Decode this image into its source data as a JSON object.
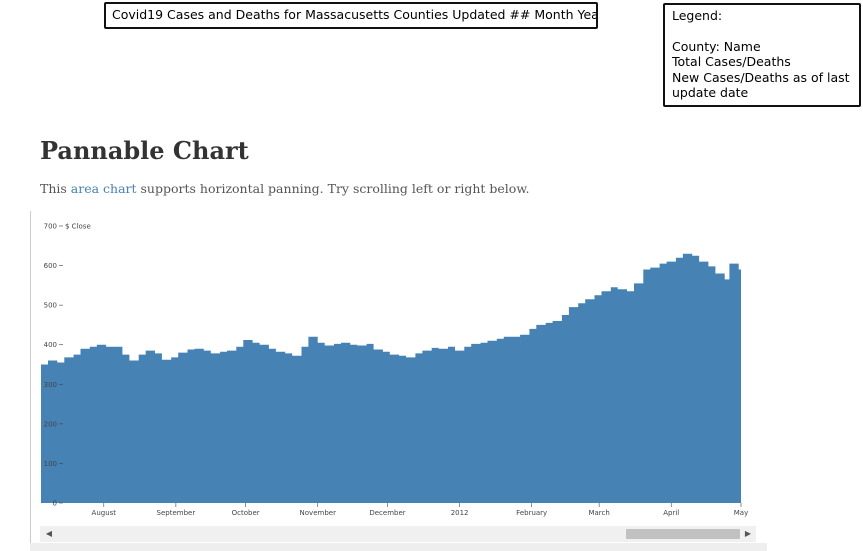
{
  "sketch": {
    "title": "Covid19 Cases and Deaths for Massacusetts Counties Updated ## Month Year",
    "legend": {
      "heading": "Legend:",
      "lines": [
        "County: Name",
        "Total Cases/Deaths",
        "New Cases/Deaths as of last update date"
      ]
    }
  },
  "page": {
    "title": "Pannable Chart",
    "intro_prefix": "This ",
    "intro_link": "area chart",
    "intro_suffix": " supports horizontal panning. Try scrolling left or right below."
  },
  "scrollbar": {
    "left_arrow": "◀",
    "right_arrow": "▶"
  },
  "chart_data": {
    "type": "area",
    "title": "",
    "ylabel": "$ Close",
    "xlabel": "",
    "ylim": [
      0,
      700
    ],
    "y_ticks": [
      0,
      100,
      200,
      300,
      400,
      500,
      600,
      700
    ],
    "x_tick_labels": [
      "August",
      "September",
      "October",
      "November",
      "December",
      "2012",
      "February",
      "March",
      "April",
      "May"
    ],
    "color": "#4682b4",
    "x_domain": [
      "2011-07-05",
      "2012-05-01"
    ],
    "x_ticks": [
      "2011-08-01",
      "2011-09-01",
      "2011-10-01",
      "2011-11-01",
      "2011-12-01",
      "2012-01-01",
      "2012-02-01",
      "2012-03-01",
      "2012-04-01",
      "2012-05-01"
    ],
    "points": [
      [
        "2011-07-05",
        350
      ],
      [
        "2011-07-08",
        360
      ],
      [
        "2011-07-12",
        355
      ],
      [
        "2011-07-15",
        368
      ],
      [
        "2011-07-19",
        375
      ],
      [
        "2011-07-22",
        390
      ],
      [
        "2011-07-26",
        395
      ],
      [
        "2011-07-29",
        400
      ],
      [
        "2011-08-02",
        395
      ],
      [
        "2011-08-05",
        395
      ],
      [
        "2011-08-09",
        375
      ],
      [
        "2011-08-12",
        360
      ],
      [
        "2011-08-16",
        375
      ],
      [
        "2011-08-19",
        385
      ],
      [
        "2011-08-23",
        378
      ],
      [
        "2011-08-26",
        362
      ],
      [
        "2011-08-30",
        368
      ],
      [
        "2011-09-02",
        380
      ],
      [
        "2011-09-06",
        388
      ],
      [
        "2011-09-09",
        390
      ],
      [
        "2011-09-13",
        385
      ],
      [
        "2011-09-16",
        378
      ],
      [
        "2011-09-20",
        382
      ],
      [
        "2011-09-23",
        385
      ],
      [
        "2011-09-27",
        395
      ],
      [
        "2011-09-30",
        412
      ],
      [
        "2011-10-04",
        405
      ],
      [
        "2011-10-07",
        400
      ],
      [
        "2011-10-11",
        390
      ],
      [
        "2011-10-14",
        382
      ],
      [
        "2011-10-18",
        378
      ],
      [
        "2011-10-21",
        372
      ],
      [
        "2011-10-25",
        395
      ],
      [
        "2011-10-28",
        420
      ],
      [
        "2011-11-01",
        405
      ],
      [
        "2011-11-04",
        398
      ],
      [
        "2011-11-08",
        402
      ],
      [
        "2011-11-11",
        405
      ],
      [
        "2011-11-15",
        400
      ],
      [
        "2011-11-18",
        398
      ],
      [
        "2011-11-22",
        402
      ],
      [
        "2011-11-25",
        388
      ],
      [
        "2011-11-29",
        382
      ],
      [
        "2011-12-02",
        375
      ],
      [
        "2011-12-06",
        372
      ],
      [
        "2011-12-09",
        368
      ],
      [
        "2011-12-13",
        378
      ],
      [
        "2011-12-16",
        385
      ],
      [
        "2011-12-20",
        392
      ],
      [
        "2011-12-23",
        390
      ],
      [
        "2011-12-27",
        395
      ],
      [
        "2011-12-30",
        385
      ],
      [
        "2012-01-03",
        395
      ],
      [
        "2012-01-06",
        402
      ],
      [
        "2012-01-10",
        405
      ],
      [
        "2012-01-13",
        410
      ],
      [
        "2012-01-17",
        415
      ],
      [
        "2012-01-20",
        420
      ],
      [
        "2012-01-24",
        420
      ],
      [
        "2012-01-27",
        425
      ],
      [
        "2012-01-31",
        440
      ],
      [
        "2012-02-03",
        450
      ],
      [
        "2012-02-07",
        455
      ],
      [
        "2012-02-10",
        460
      ],
      [
        "2012-02-14",
        475
      ],
      [
        "2012-02-17",
        495
      ],
      [
        "2012-02-21",
        505
      ],
      [
        "2012-02-24",
        515
      ],
      [
        "2012-02-28",
        525
      ],
      [
        "2012-03-02",
        535
      ],
      [
        "2012-03-06",
        545
      ],
      [
        "2012-03-09",
        540
      ],
      [
        "2012-03-13",
        535
      ],
      [
        "2012-03-16",
        555
      ],
      [
        "2012-03-20",
        590
      ],
      [
        "2012-03-23",
        595
      ],
      [
        "2012-03-27",
        605
      ],
      [
        "2012-03-30",
        610
      ],
      [
        "2012-04-03",
        620
      ],
      [
        "2012-04-06",
        630
      ],
      [
        "2012-04-10",
        625
      ],
      [
        "2012-04-13",
        610
      ],
      [
        "2012-04-17",
        598
      ],
      [
        "2012-04-20",
        580
      ],
      [
        "2012-04-24",
        565
      ],
      [
        "2012-04-26",
        605
      ],
      [
        "2012-04-30",
        590
      ],
      [
        "2012-05-01",
        580
      ]
    ]
  }
}
